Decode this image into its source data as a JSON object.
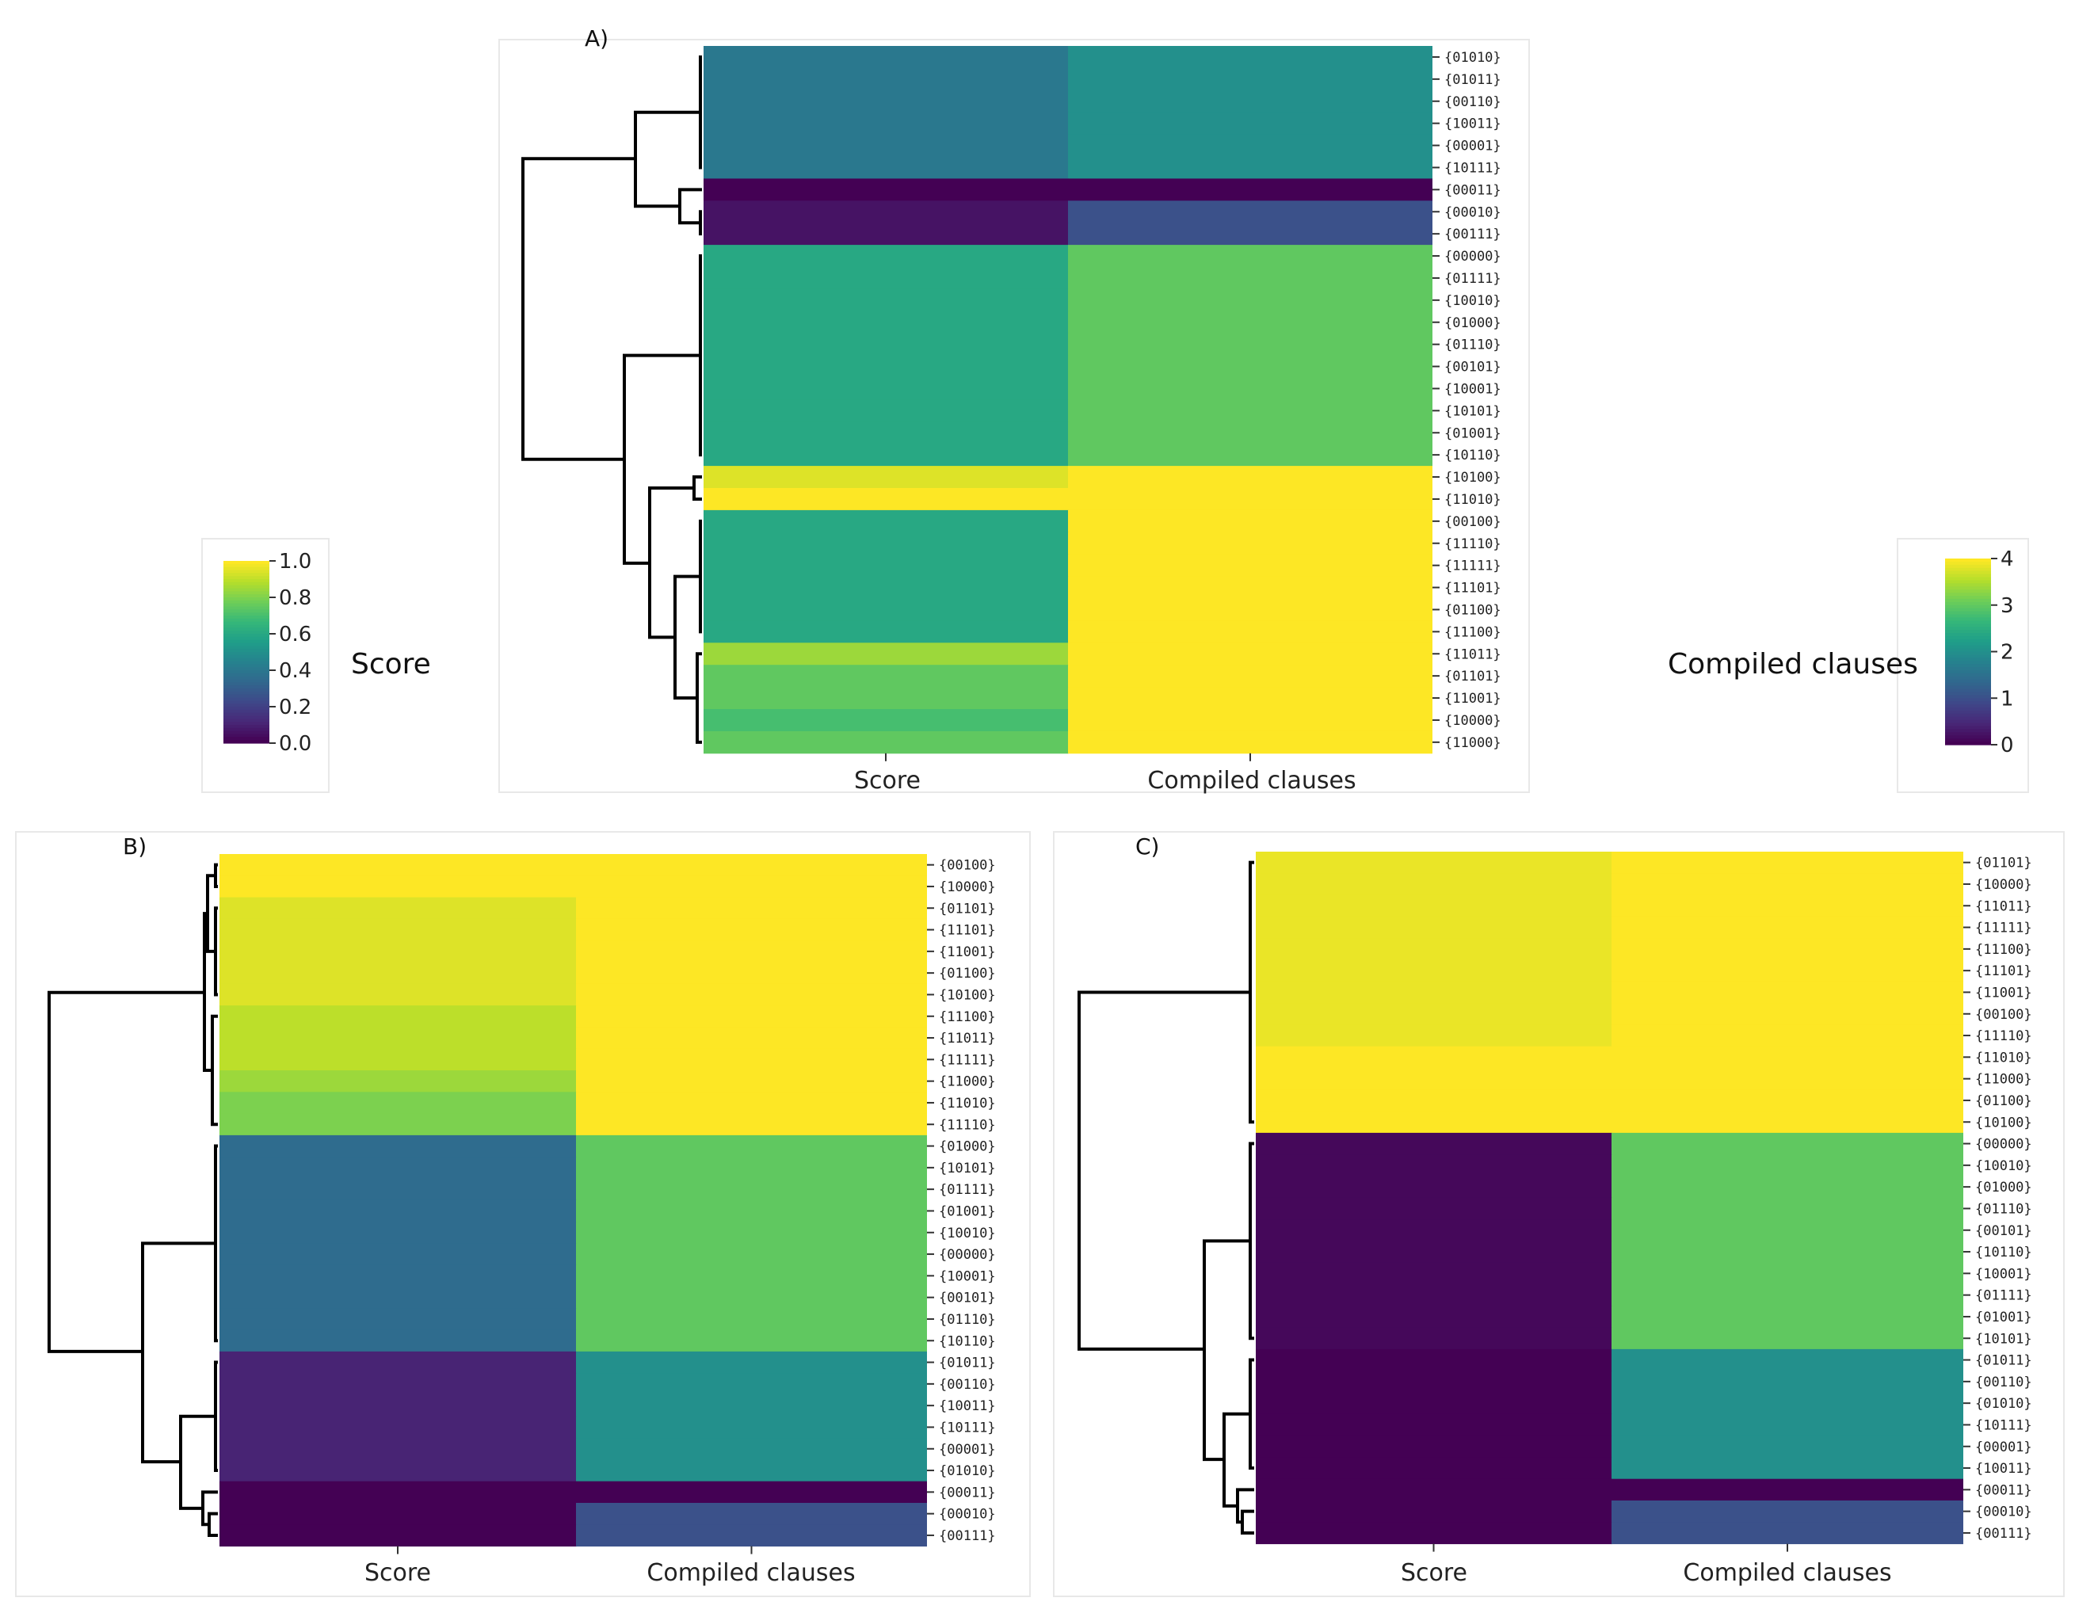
{
  "colors": {
    "viridis": [
      "#440154",
      "#482878",
      "#3e4989",
      "#31688e",
      "#26828e",
      "#1f9e89",
      "#35b779",
      "#6ece58",
      "#b5de2b",
      "#fde725"
    ]
  },
  "colorbars": [
    {
      "title": "Score",
      "ticks": [
        "0.0",
        "0.2",
        "0.4",
        "0.6",
        "0.8",
        "1.0"
      ],
      "range": [
        0,
        1
      ]
    },
    {
      "title": "Compiled clauses",
      "ticks": [
        "0",
        "1",
        "2",
        "3",
        "4"
      ],
      "range": [
        0,
        4
      ]
    }
  ],
  "chart_data": [
    {
      "type": "heatmap",
      "panel": "A)",
      "columns": [
        "Score",
        "Compiled clauses"
      ],
      "rows": [
        "{01010}",
        "{01011}",
        "{00110}",
        "{10011}",
        "{00001}",
        "{10111}",
        "{00011}",
        "{00010}",
        "{00111}",
        "{00000}",
        "{01111}",
        "{10010}",
        "{01000}",
        "{01110}",
        "{00101}",
        "{10001}",
        "{10101}",
        "{01001}",
        "{10110}",
        "{10100}",
        "{11010}",
        "{00100}",
        "{11110}",
        "{11111}",
        "{11101}",
        "{01100}",
        "{11100}",
        "{11011}",
        "{01101}",
        "{11001}",
        "{10000}",
        "{11000}"
      ],
      "score": [
        0.4,
        0.4,
        0.4,
        0.4,
        0.4,
        0.4,
        0.0,
        0.05,
        0.05,
        0.6,
        0.6,
        0.6,
        0.6,
        0.6,
        0.6,
        0.6,
        0.6,
        0.6,
        0.6,
        0.95,
        1.0,
        0.6,
        0.6,
        0.6,
        0.6,
        0.6,
        0.6,
        0.85,
        0.75,
        0.75,
        0.7,
        0.75
      ],
      "compiled_clauses": [
        2,
        2,
        2,
        2,
        2,
        2,
        0,
        1,
        1,
        3,
        3,
        3,
        3,
        3,
        3,
        3,
        3,
        3,
        3,
        4,
        4,
        4,
        4,
        4,
        4,
        4,
        4,
        4,
        4,
        4,
        4,
        4
      ]
    },
    {
      "type": "heatmap",
      "panel": "B)",
      "columns": [
        "Score",
        "Compiled clauses"
      ],
      "rows": [
        "{00100}",
        "{10000}",
        "{01101}",
        "{11101}",
        "{11001}",
        "{01100}",
        "{10100}",
        "{11100}",
        "{11011}",
        "{11111}",
        "{11000}",
        "{11010}",
        "{11110}",
        "{01000}",
        "{10101}",
        "{01111}",
        "{01001}",
        "{10010}",
        "{00000}",
        "{10001}",
        "{00101}",
        "{01110}",
        "{10110}",
        "{01011}",
        "{00110}",
        "{10011}",
        "{10111}",
        "{00001}",
        "{01010}",
        "{00011}",
        "{00010}",
        "{00111}"
      ],
      "score": [
        1.0,
        1.0,
        0.95,
        0.95,
        0.95,
        0.95,
        0.95,
        0.9,
        0.9,
        0.9,
        0.85,
        0.8,
        0.8,
        0.35,
        0.35,
        0.35,
        0.35,
        0.35,
        0.35,
        0.35,
        0.35,
        0.35,
        0.35,
        0.1,
        0.1,
        0.1,
        0.1,
        0.1,
        0.1,
        0.0,
        0.0,
        0.0
      ],
      "compiled_clauses": [
        4,
        4,
        4,
        4,
        4,
        4,
        4,
        4,
        4,
        4,
        4,
        4,
        4,
        3,
        3,
        3,
        3,
        3,
        3,
        3,
        3,
        3,
        3,
        2,
        2,
        2,
        2,
        2,
        2,
        0,
        1,
        1
      ]
    },
    {
      "type": "heatmap",
      "panel": "C)",
      "columns": [
        "Score",
        "Compiled clauses"
      ],
      "rows": [
        "{01101}",
        "{10000}",
        "{11011}",
        "{11111}",
        "{11100}",
        "{11101}",
        "{11001}",
        "{00100}",
        "{11110}",
        "{11010}",
        "{11000}",
        "{01100}",
        "{10100}",
        "{00000}",
        "{10010}",
        "{01000}",
        "{01110}",
        "{00101}",
        "{10110}",
        "{10001}",
        "{01111}",
        "{01001}",
        "{10101}",
        "{01011}",
        "{00110}",
        "{01010}",
        "{10111}",
        "{00001}",
        "{10011}",
        "{00011}",
        "{00010}",
        "{00111}"
      ],
      "score": [
        0.97,
        0.97,
        0.97,
        0.97,
        0.97,
        0.97,
        0.97,
        0.97,
        0.97,
        1.0,
        1.0,
        1.0,
        1.0,
        0.02,
        0.02,
        0.02,
        0.02,
        0.02,
        0.02,
        0.02,
        0.02,
        0.02,
        0.02,
        0.0,
        0.0,
        0.0,
        0.0,
        0.0,
        0.0,
        0.0,
        0.0,
        0.0
      ],
      "compiled_clauses": [
        4,
        4,
        4,
        4,
        4,
        4,
        4,
        4,
        4,
        4,
        4,
        4,
        4,
        3,
        3,
        3,
        3,
        3,
        3,
        3,
        3,
        3,
        3,
        2,
        2,
        2,
        2,
        2,
        2,
        0,
        1,
        1
      ]
    }
  ]
}
